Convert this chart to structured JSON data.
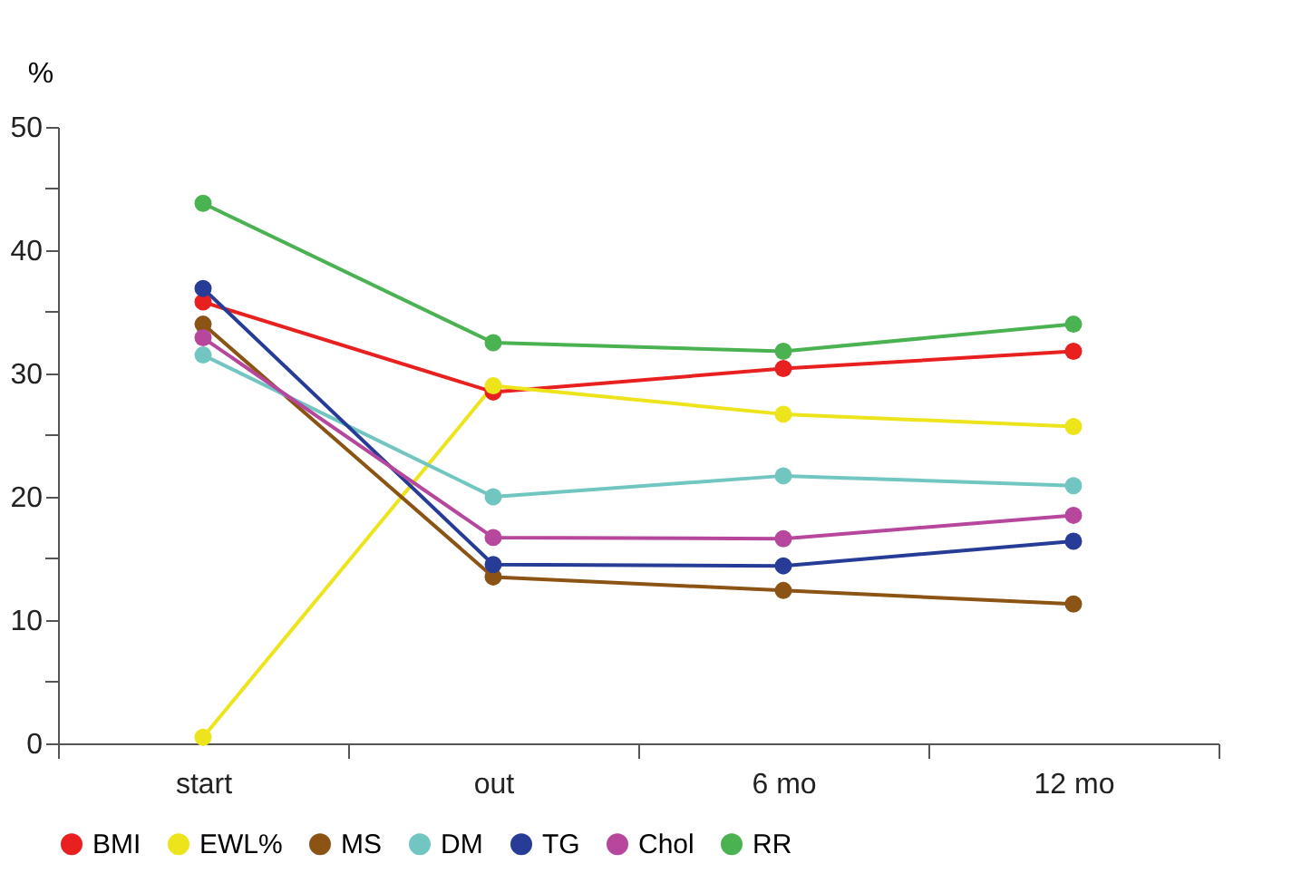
{
  "chart_data": {
    "type": "line",
    "ylabel": "%",
    "categories": [
      "start",
      "out",
      "6 mo",
      "12 mo"
    ],
    "series": [
      {
        "name": "BMI",
        "color": "#e8201f",
        "values": [
          35.8,
          28.5,
          30.4,
          31.8
        ]
      },
      {
        "name": "EWL%",
        "color": "#ede41c",
        "values": [
          0.5,
          29.0,
          26.7,
          25.7
        ]
      },
      {
        "name": "MS",
        "color": "#8b5414",
        "values": [
          34.0,
          13.5,
          12.4,
          11.3
        ]
      },
      {
        "name": "DM",
        "color": "#72c6c1",
        "values": [
          31.5,
          20.0,
          21.7,
          20.9
        ]
      },
      {
        "name": "TG",
        "color": "#263c97",
        "values": [
          36.9,
          14.5,
          14.4,
          16.4
        ]
      },
      {
        "name": "Chol",
        "color": "#b7479c",
        "values": [
          32.9,
          16.7,
          16.6,
          18.5
        ]
      },
      {
        "name": "RR",
        "color": "#4bb252",
        "values": [
          43.8,
          32.5,
          31.8,
          34.0
        ]
      }
    ],
    "ylim": [
      0,
      50
    ],
    "yticks": [
      0,
      {
        "value": 5,
        "label": null
      },
      10,
      {
        "value": 15,
        "label": null
      },
      20,
      {
        "value": 25,
        "label": null
      },
      30,
      {
        "value": 35,
        "label": null
      },
      40,
      {
        "value": 45,
        "label": null
      },
      50
    ],
    "grid": false,
    "legend": "bottom",
    "marker": "circle",
    "line_style": "solid"
  }
}
